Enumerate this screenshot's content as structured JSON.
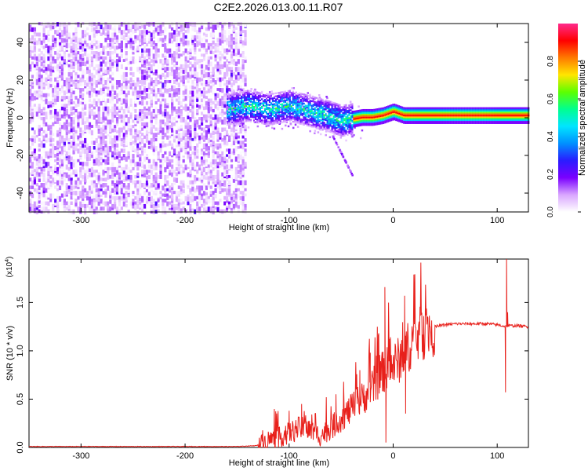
{
  "title": "C2E2.2026.013.00.11.R07",
  "colorbar": {
    "label": "Normalized spectral amplitude",
    "ticks": [
      0.0,
      0.2,
      0.4,
      0.6,
      0.8
    ],
    "tick_labels": [
      "0.0",
      "0.2",
      "0.4",
      "0.6",
      "0.8"
    ],
    "range": [
      0,
      1
    ],
    "colormap": [
      "#ffffff",
      "#d9a6ff",
      "#7a00ff",
      "#2a1cff",
      "#0090ff",
      "#00e5ff",
      "#00ff90",
      "#5cff00",
      "#ffe600",
      "#ff7a00",
      "#ff0000",
      "#ff2a8c"
    ]
  },
  "chart_data": [
    {
      "type": "heatmap",
      "title": "C2E2.2026.013.00.11.R07",
      "xlabel": "Height of straight line (km)",
      "ylabel": "Frequency (Hz)",
      "xlim": [
        -350,
        130
      ],
      "ylim": [
        -50,
        50
      ],
      "x_ticks": [
        -300,
        -200,
        -100,
        0,
        100
      ],
      "x_tick_labels": [
        "-300",
        "-200",
        "-100",
        "0",
        "100"
      ],
      "y_ticks": [
        -40,
        -20,
        0,
        20,
        40
      ],
      "y_tick_labels": [
        "-40",
        "-20",
        "0",
        "20",
        "40"
      ],
      "colorbar_label": "Normalized spectral amplitude",
      "colorbar_range": [
        0,
        1
      ],
      "description_of_regions": [
        {
          "x_range": [
            -350,
            -143
          ],
          "y_range": [
            -50,
            50
          ],
          "amplitude": [
            0.0,
            0.2
          ]
        },
        {
          "x_range": [
            -140,
            -40
          ],
          "y_range": [
            -8,
            8
          ],
          "amplitude": [
            0.15,
            0.55
          ]
        },
        {
          "x_range": [
            -40,
            130
          ],
          "y_range": [
            -3,
            4
          ],
          "amplitude": [
            0.4,
            0.95
          ]
        }
      ],
      "ridge": {
        "x": [
          -160,
          -140,
          -120,
          -100,
          -80,
          -60,
          -50,
          -40,
          -30,
          -20,
          -10,
          0,
          10,
          20,
          40,
          60,
          80,
          100,
          120,
          130
        ],
        "y": [
          4,
          6,
          4,
          6,
          3,
          0,
          -2,
          -1,
          0,
          0,
          1,
          3,
          1,
          1,
          1,
          1,
          1,
          1,
          1,
          1
        ]
      }
    },
    {
      "type": "line",
      "xlabel": "Height of straight line (km)",
      "ylabel": "SNR (10 * v/v)",
      "y_multiplier_label": "(x10",
      "y_multiplier_exp": "4",
      "y_multiplier_close": ")",
      "xlim": [
        -350,
        130
      ],
      "ylim": [
        0,
        1.95
      ],
      "x_ticks": [
        -300,
        -200,
        -100,
        0,
        100
      ],
      "x_tick_labels": [
        "-300",
        "-200",
        "-100",
        "0",
        "100"
      ],
      "y_ticks": [
        0,
        0.5,
        1.0,
        1.5
      ],
      "y_tick_labels": [
        "0.0",
        "0.5",
        "1.0",
        "1.5"
      ],
      "series": [
        {
          "color": "#e8201b",
          "x": [
            -350,
            -300,
            -250,
            -200,
            -150,
            -130,
            -120,
            -110,
            -100,
            -90,
            -80,
            -70,
            -60,
            -50,
            -40,
            -30,
            -20,
            -15,
            -10,
            -8,
            -5,
            0,
            5,
            10,
            12,
            15,
            20,
            30,
            40,
            50,
            60,
            70,
            80,
            90,
            100,
            105,
            108,
            110,
            112,
            115,
            120,
            130
          ],
          "y": [
            0.01,
            0.01,
            0.01,
            0.01,
            0.01,
            0.02,
            0.08,
            0.1,
            0.15,
            0.2,
            0.18,
            0.12,
            0.2,
            0.3,
            0.4,
            0.5,
            0.62,
            0.7,
            0.78,
            0.8,
            0.82,
            0.85,
            0.9,
            0.95,
            1.0,
            1.05,
            1.12,
            1.2,
            1.25,
            1.27,
            1.28,
            1.28,
            1.28,
            1.28,
            1.27,
            1.26,
            1.25,
            1.26,
            1.26,
            1.26,
            1.26,
            1.25
          ],
          "spikes": [
            {
              "x": -100,
              "y": 0.38
            },
            {
              "x": -88,
              "y": 0.45
            },
            {
              "x": -75,
              "y": 0.35
            },
            {
              "x": -55,
              "y": 0.55
            },
            {
              "x": -45,
              "y": 0.45
            },
            {
              "x": -32,
              "y": 0.8
            },
            {
              "x": -22,
              "y": 0.98
            },
            {
              "x": -16,
              "y": 0.95
            },
            {
              "x": -8,
              "y": 1.66
            },
            {
              "x": -7,
              "y": 0.05
            },
            {
              "x": -4,
              "y": 1.1
            },
            {
              "x": 11,
              "y": 1.57
            },
            {
              "x": 12,
              "y": 0.35
            },
            {
              "x": 108,
              "y": 0.57
            },
            {
              "x": 109,
              "y": 1.95
            },
            {
              "x": 110,
              "y": 1.4
            }
          ]
        }
      ]
    }
  ]
}
